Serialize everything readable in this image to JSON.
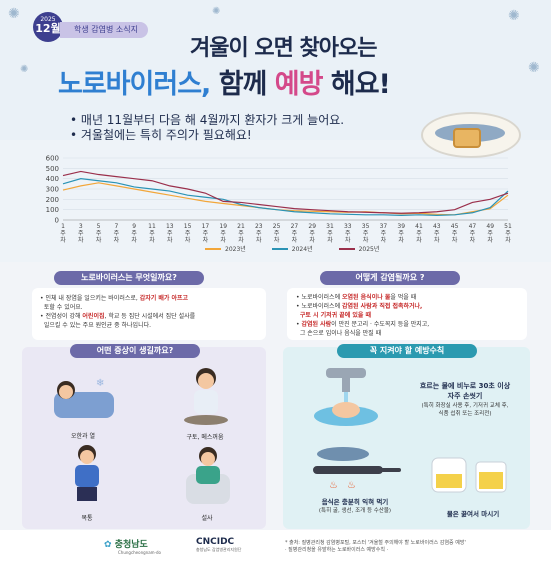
{
  "header": {
    "year": "2025",
    "month": "12월",
    "series_label": "학생 감염병 소식지",
    "title_line1": "겨울이 오면 찾아오는",
    "title_main": "노로바이러스,",
    "title_mid": " 함께 ",
    "title_emph": "예방",
    "title_end": " 해요!",
    "bullet1": "매년 11월부터 다음 해 4월까지 환자가 크게 늘어요.",
    "bullet2": "겨울철에는 특히 주의가 필요해요!"
  },
  "chart_data": {
    "type": "line",
    "x": [
      1,
      3,
      5,
      7,
      9,
      11,
      13,
      15,
      17,
      19,
      21,
      23,
      25,
      27,
      29,
      31,
      33,
      35,
      37,
      39,
      41,
      43,
      45,
      47,
      49,
      51
    ],
    "x_tick_labels": [
      "1\n주\n차",
      "3\n주\n차",
      "5\n주\n차",
      "7\n주\n차",
      "9\n주\n차",
      "11\n주\n차",
      "13\n주\n차",
      "15\n주\n차",
      "17\n주\n차",
      "19\n주\n차",
      "21\n주\n차",
      "23\n주\n차",
      "25\n주\n차",
      "27\n주\n차",
      "29\n주\n차",
      "31\n주\n차",
      "33\n주\n차",
      "35\n주\n차",
      "37\n주\n차",
      "39\n주\n차",
      "41\n주\n차",
      "43\n주\n차",
      "45\n주\n차",
      "47\n주\n차",
      "49\n주\n차",
      "51\n주\n차"
    ],
    "ylim": [
      0,
      600
    ],
    "yticks": [
      0,
      100,
      200,
      300,
      400,
      500,
      600
    ],
    "series": [
      {
        "name": "2023년",
        "color": "#f2a63a",
        "values": [
          290,
          330,
          360,
          330,
          300,
          270,
          240,
          210,
          180,
          160,
          140,
          120,
          100,
          90,
          85,
          80,
          75,
          80,
          70,
          60,
          65,
          55,
          50,
          80,
          110,
          240
        ]
      },
      {
        "name": "2024년",
        "color": "#2b93b5",
        "values": [
          350,
          400,
          380,
          360,
          320,
          300,
          280,
          240,
          220,
          200,
          150,
          120,
          100,
          80,
          70,
          60,
          55,
          50,
          50,
          45,
          50,
          45,
          50,
          70,
          120,
          280
        ]
      },
      {
        "name": "2025년",
        "color": "#9a2f4b",
        "values": [
          430,
          470,
          440,
          420,
          400,
          380,
          330,
          300,
          260,
          180,
          170,
          150,
          130,
          110,
          100,
          90,
          80,
          75,
          70,
          65,
          70,
          80,
          100,
          170,
          200,
          260
        ]
      }
    ]
  },
  "sections": {
    "what_title": "노로바이러스는 무엇일까요?",
    "what_line1a": "인체 내 장염을 일으키는 바이러스로,",
    "what_line1b": "갑자기 배가 아프고",
    "what_line1c": "토할 수 있어요.",
    "what_line2a": "전염성이 강해",
    "what_line2b": "어린이집",
    "what_line2c": ", 학교 등 집단 시설에서 집단 설사를",
    "what_line2d": "일으킬 수 있는 주요 원인균 중 하나입니다.",
    "how_title": "어떻게 감염될까요 ?",
    "how_line1a": "노로바이러스에",
    "how_line1b": "오염된 음식이나 물",
    "how_line1c": "을 먹을 때",
    "how_line2a": "노로바이러스에",
    "how_line2b": "감염된 사람과 직접 접촉하거나,",
    "how_line2c": "구토 시 기저귀 끝에 있을 때",
    "how_line3a": "감염된 사람",
    "how_line3b": "이 만진 문고리 · 수도꼭지 등을 만지고,",
    "how_line3c": "그 손으로 입이나 음식을 만질 때",
    "symptom_title": "어떤 증상이 생길까요?",
    "symptoms": [
      "오한과 열",
      "구토, 메스꺼움",
      "복통",
      "설사"
    ],
    "prevent_title": "꼭 지켜야 할 예방수칙",
    "prevent1_title": "흐르는 물에 비누로 30초 이상",
    "prevent1_title2": "자주 손씻기",
    "prevent1_sub": "(특히 화장실 사용 후, 기저귀 교체 후,",
    "prevent1_sub2": "식품 섭취 또는 조리전)",
    "prevent2_title": "음식은 충분히 익혀 먹기",
    "prevent2_sub": "(특히 굴, 생선, 조개 등 수산물)",
    "prevent3_title": "물은 끓여서 마시기"
  },
  "footer": {
    "logo1": "충청남도",
    "logo1_sub": "Chungcheongnam-do",
    "logo2": "CNCIDC",
    "logo2_sub": "충청남도 감염병관리지원단",
    "note1": "* 출처: 질병관리청 감염병포털, 포스터 '겨울철 주의해야 할 노로바이러스 감염증 예방'",
    "note2": "· 질병관리청을 유발하는 노로바이러스 예방수칙 ·"
  }
}
